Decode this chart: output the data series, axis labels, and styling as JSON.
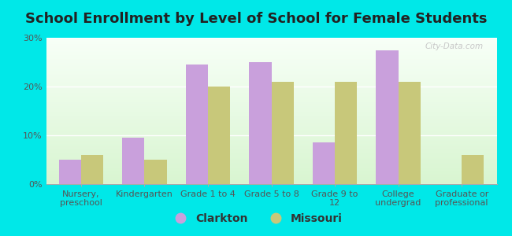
{
  "title": "School Enrollment by Level of School for Female Students",
  "categories": [
    "Nursery,\npreschool",
    "Kindergarten",
    "Grade 1 to 4",
    "Grade 5 to 8",
    "Grade 9 to\n12",
    "College\nundergrad",
    "Graduate or\nprofessional"
  ],
  "clarkton": [
    5.0,
    9.5,
    24.5,
    25.0,
    8.5,
    27.5,
    0.0
  ],
  "missouri": [
    6.0,
    5.0,
    20.0,
    21.0,
    21.0,
    21.0,
    6.0
  ],
  "clarkton_color": "#c9a0dc",
  "missouri_color": "#c8c87a",
  "background_color": "#00e8e8",
  "ylim": [
    0,
    30
  ],
  "yticks": [
    0,
    10,
    20,
    30
  ],
  "ytick_labels": [
    "0%",
    "10%",
    "20%",
    "30%"
  ],
  "watermark": "City-Data.com",
  "legend_labels": [
    "Clarkton",
    "Missouri"
  ],
  "title_fontsize": 13,
  "tick_fontsize": 8,
  "legend_fontsize": 10
}
